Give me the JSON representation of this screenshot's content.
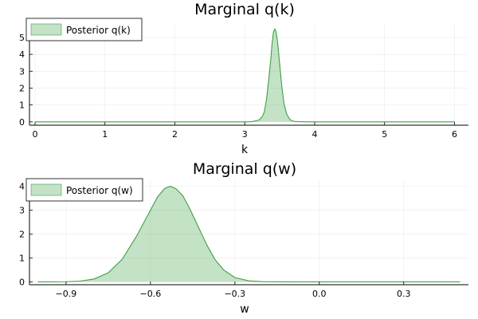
{
  "chart_data": [
    {
      "type": "area",
      "title": "Marginal q(k)",
      "xlabel": "k",
      "ylabel": "",
      "xlim": [
        -0.08,
        6.2
      ],
      "ylim": [
        -0.2,
        5.85
      ],
      "xticks": [
        0,
        1,
        2,
        3,
        4,
        5,
        6
      ],
      "xtick_labels": [
        "0",
        "1",
        "2",
        "3",
        "4",
        "5",
        "6"
      ],
      "yticks": [
        0,
        1,
        2,
        3,
        4,
        5
      ],
      "ytick_labels": [
        "0",
        "1",
        "2",
        "3",
        "4",
        "5"
      ],
      "grid": true,
      "legend_position": "top-left",
      "color": "#3da042",
      "series": [
        {
          "name": "Posterior q(k)",
          "x": [
            0,
            0.5,
            1,
            1.5,
            2,
            2.5,
            3,
            3.1,
            3.2,
            3.25,
            3.28,
            3.31,
            3.34,
            3.37,
            3.39,
            3.41,
            3.43,
            3.45,
            3.47,
            3.5,
            3.53,
            3.56,
            3.6,
            3.65,
            3.7,
            3.8,
            4,
            4.5,
            5,
            5.5,
            6
          ],
          "y": [
            0,
            0,
            0,
            0,
            0,
            0,
            0,
            0.01,
            0.1,
            0.3,
            0.6,
            1.3,
            2.4,
            3.6,
            4.6,
            5.3,
            5.5,
            5.3,
            4.7,
            3.4,
            2.1,
            1.1,
            0.45,
            0.12,
            0.03,
            0.003,
            0,
            0,
            0,
            0,
            0
          ]
        }
      ]
    },
    {
      "type": "area",
      "title": "Marginal q(w)",
      "xlabel": "w",
      "ylabel": "",
      "xlim": [
        -1.03,
        0.53
      ],
      "ylim": [
        -0.12,
        4.25
      ],
      "xticks": [
        -0.9,
        -0.6,
        -0.3,
        0.0,
        0.3
      ],
      "xtick_labels": [
        "−0.9",
        "−0.6",
        "−0.3",
        "0.0",
        "0.3"
      ],
      "yticks": [
        0,
        1,
        2,
        3,
        4
      ],
      "ytick_labels": [
        "0",
        "1",
        "2",
        "3",
        "4"
      ],
      "grid": true,
      "legend_position": "top-left",
      "color": "#3da042",
      "series": [
        {
          "name": "Posterior q(w)",
          "x": [
            -1.0,
            -0.95,
            -0.9,
            -0.85,
            -0.8,
            -0.75,
            -0.7,
            -0.65,
            -0.6,
            -0.575,
            -0.55,
            -0.53,
            -0.51,
            -0.485,
            -0.46,
            -0.43,
            -0.4,
            -0.37,
            -0.34,
            -0.3,
            -0.25,
            -0.2,
            -0.1,
            0.0,
            0.1,
            0.2,
            0.3,
            0.4,
            0.5
          ],
          "y": [
            0.0,
            0.0,
            0.005,
            0.03,
            0.12,
            0.38,
            0.95,
            1.9,
            3.0,
            3.55,
            3.9,
            4.0,
            3.9,
            3.6,
            3.05,
            2.3,
            1.55,
            0.92,
            0.5,
            0.18,
            0.04,
            0.008,
            0.0,
            0.0,
            0.0,
            0.0,
            0.0,
            0.0,
            0.0
          ]
        }
      ]
    }
  ]
}
